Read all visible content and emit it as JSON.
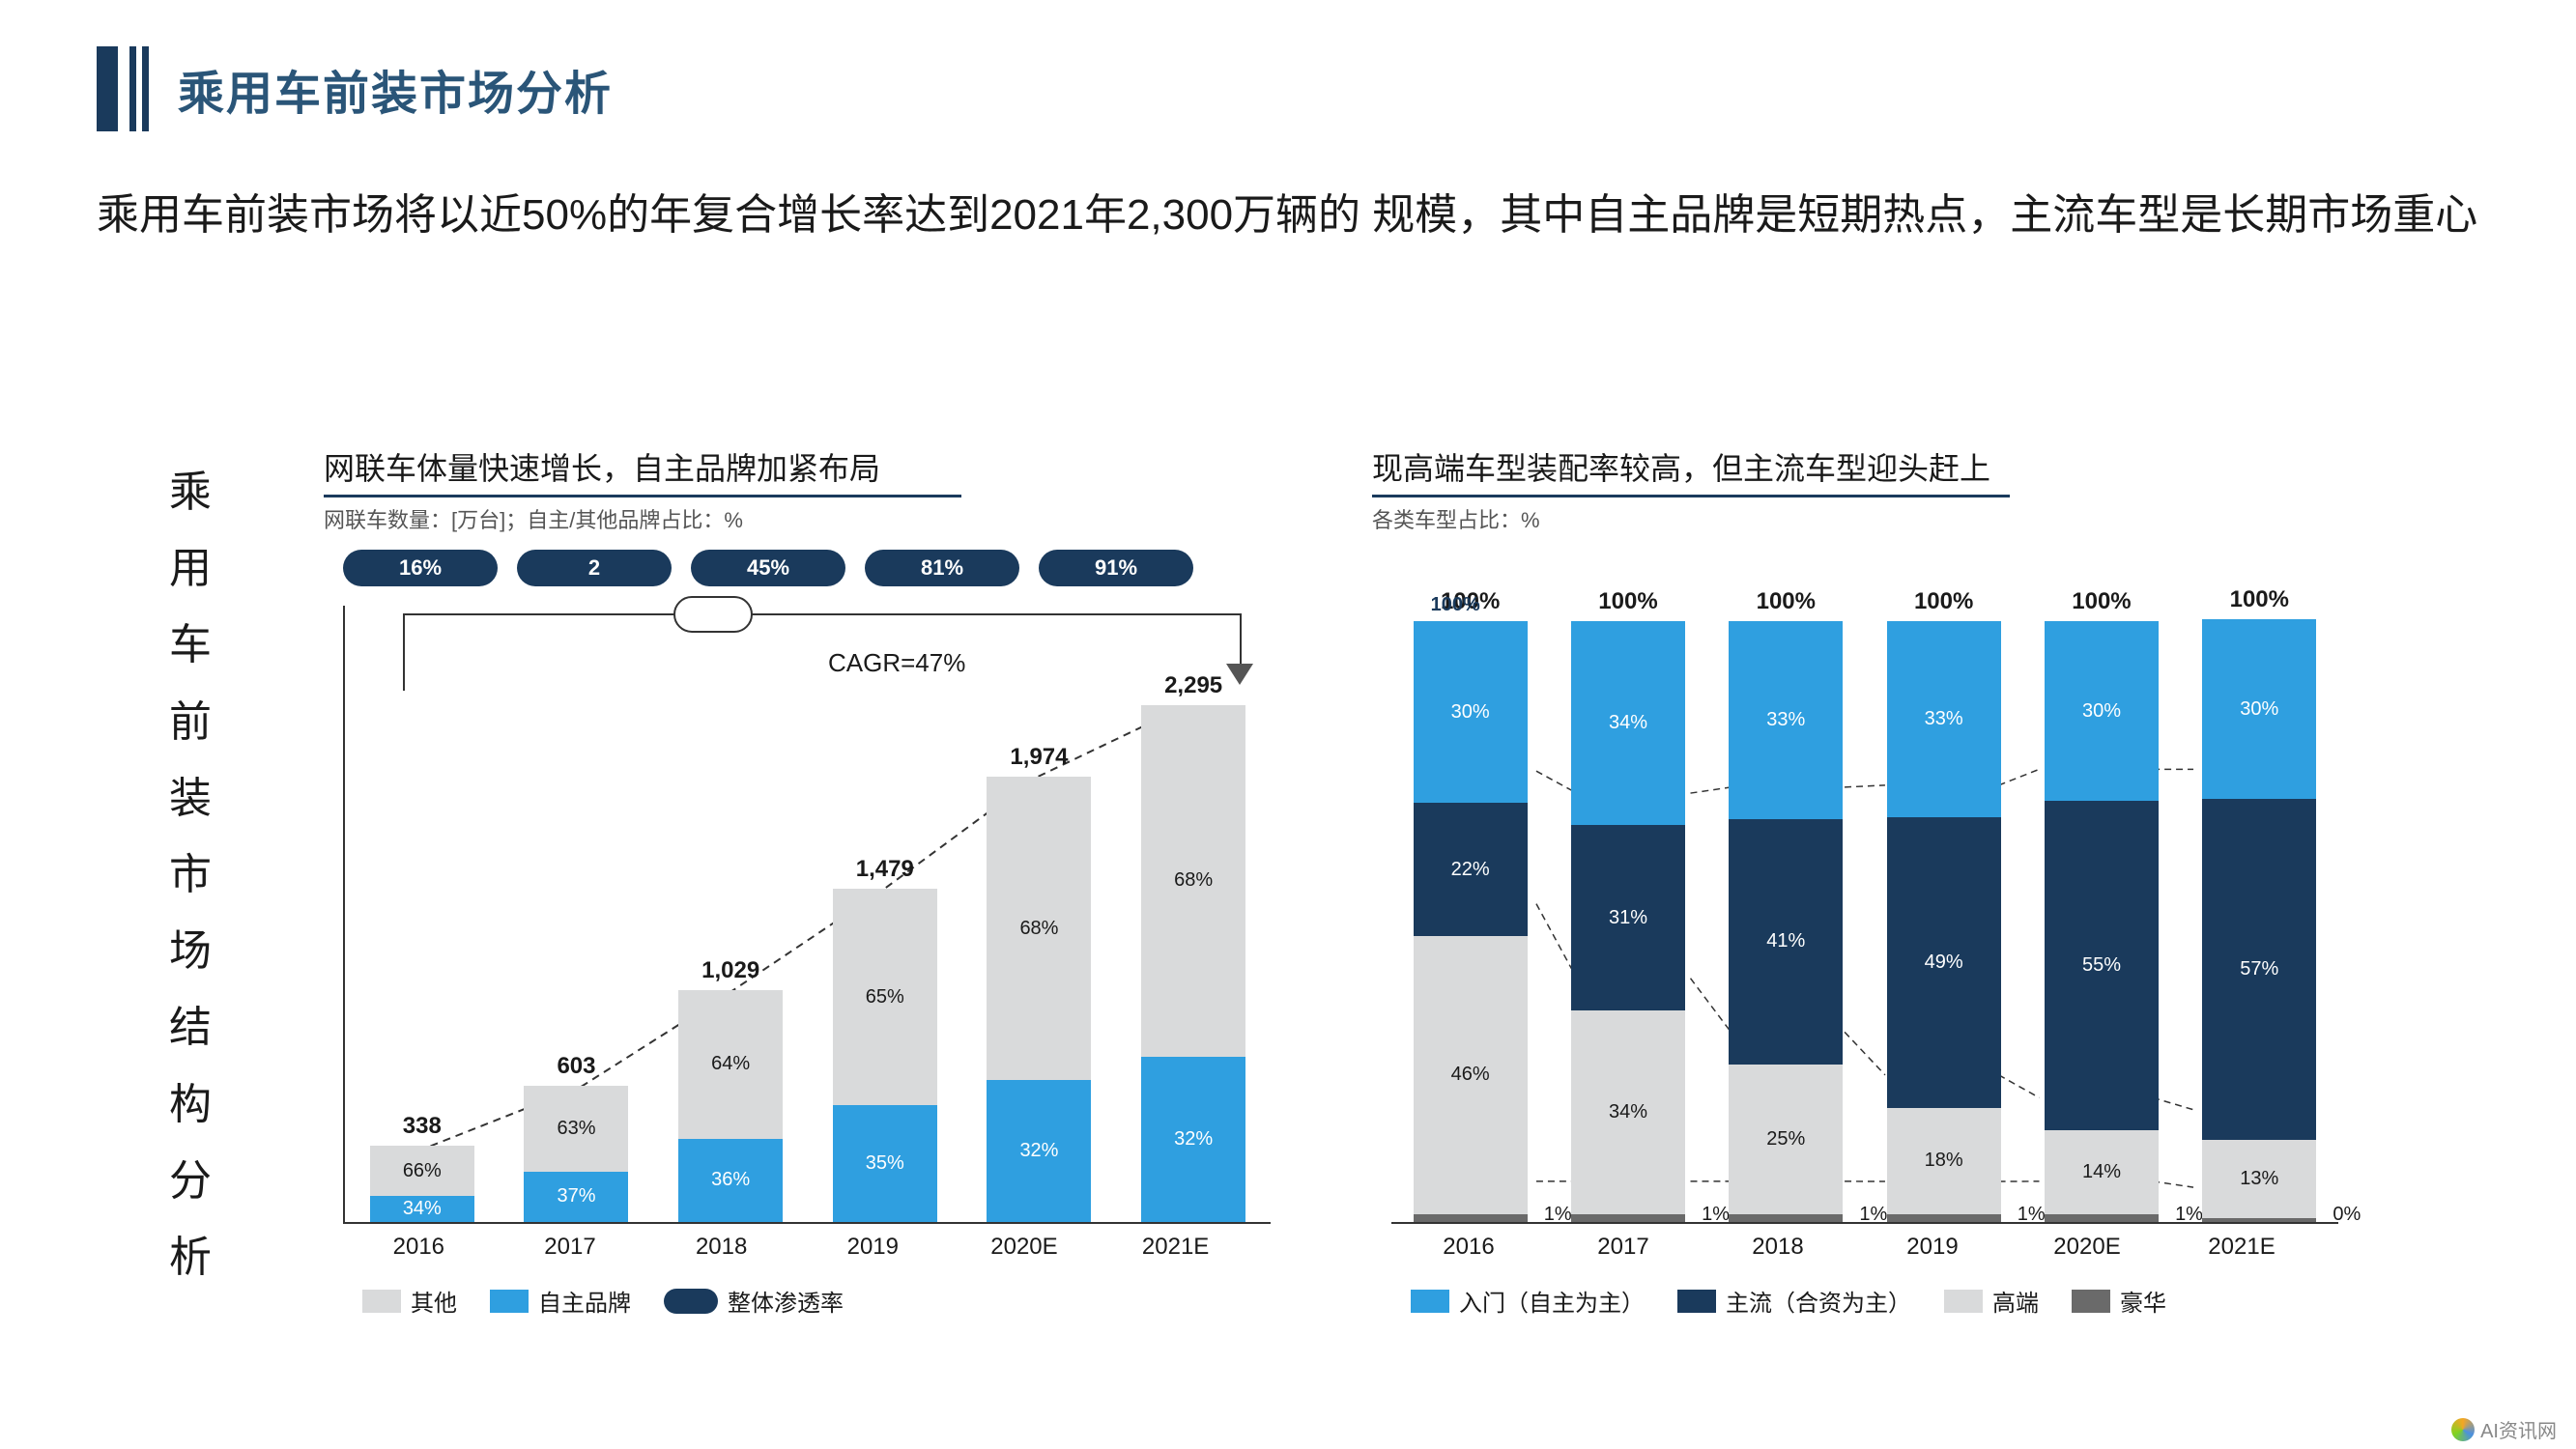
{
  "colors": {
    "brand_dark": "#1a3a5c",
    "blue": "#2f9fe0",
    "gray_light": "#d9dadb",
    "gray_dark": "#6a6a6a",
    "axis": "#333333",
    "text": "#1a1a1a"
  },
  "title": "乘用车前装市场分析",
  "subtitle": "乘用车前装市场将以近50%的年复合增长率达到2021年2,300万辆的 规模，其中自主品牌是短期热点，主流车型是长期市场重心",
  "vertical_label": "乘用车前装市场结构分析",
  "watermark": "AI资讯网",
  "chart_left": {
    "title": "网联车体量快速增长，自主品牌加紧布局",
    "subtitle": "网联车数量：[万台]；自主/其他品牌占比：%",
    "pills": [
      "16%",
      "2",
      "45%",
      "81%",
      "91%"
    ],
    "cagr": "CAGR=47%",
    "categories": [
      "2016",
      "2017",
      "2018",
      "2019",
      "2020E",
      "2021E"
    ],
    "totals": [
      "338",
      "603",
      "1,029",
      "1,479",
      "1,974",
      "2,295"
    ],
    "total_values": [
      338,
      603,
      1029,
      1479,
      1974,
      2295
    ],
    "ymax": 2400,
    "series": [
      {
        "name": "自主品牌",
        "color": "#2f9fe0",
        "text_color": "#ffffff",
        "values_pct": [
          34,
          37,
          36,
          35,
          32,
          32
        ]
      },
      {
        "name": "其他",
        "color": "#d9dadb",
        "text_color": "#1a1a1a",
        "values_pct": [
          66,
          63,
          64,
          65,
          68,
          68
        ]
      }
    ],
    "legend": [
      {
        "label": "其他",
        "swatch": "#d9dadb",
        "type": "box"
      },
      {
        "label": "自主品牌",
        "swatch": "#2f9fe0",
        "type": "box"
      },
      {
        "label": "整体渗透率",
        "swatch": "#1a3a5c",
        "type": "pill"
      }
    ]
  },
  "chart_right": {
    "title": "现高端车型装配率较高，但主流车型迎头赶上",
    "subtitle": "各类车型占比：%",
    "categories": [
      "2016",
      "2017",
      "2018",
      "2019",
      "2020E",
      "2021E"
    ],
    "top_label": "100%",
    "first_inner_label": "100%",
    "series_order": [
      "luxury",
      "premium",
      "mainstream",
      "entry"
    ],
    "series": {
      "entry": {
        "label": "入门（自主为主）",
        "color": "#2f9fe0",
        "text_color": "#ffffff",
        "values": [
          30,
          34,
          33,
          33,
          30,
          30
        ]
      },
      "mainstream": {
        "label": "主流（合资为主）",
        "color": "#1a3a5c",
        "text_color": "#ffffff",
        "values": [
          22,
          31,
          41,
          49,
          55,
          57
        ]
      },
      "premium": {
        "label": "高端",
        "color": "#d9dadb",
        "text_color": "#1a1a1a",
        "values": [
          46,
          34,
          25,
          18,
          14,
          13
        ]
      },
      "luxury": {
        "label": "豪华",
        "color": "#6a6a6a",
        "text_color": "#ffffff",
        "values": [
          1,
          1,
          1,
          1,
          1,
          0
        ],
        "display": [
          "1%",
          "1%",
          "1%",
          "1%",
          "1%",
          "0%"
        ]
      }
    },
    "legend": [
      {
        "label": "入门（自主为主）",
        "swatch": "#2f9fe0"
      },
      {
        "label": "主流（合资为主）",
        "swatch": "#1a3a5c"
      },
      {
        "label": "高端",
        "swatch": "#d9dadb"
      },
      {
        "label": "豪华",
        "swatch": "#6a6a6a"
      }
    ]
  }
}
